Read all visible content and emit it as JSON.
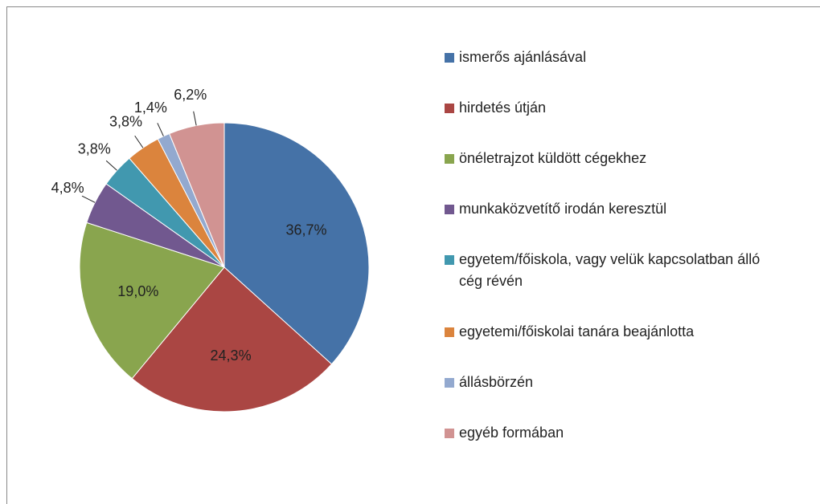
{
  "chart_data": {
    "type": "pie",
    "categories": [
      "ismerős ajánlásával",
      "hirdetés útján",
      "önéletrajzot küldött cégekhez",
      "munkaközvetítő irodán keresztül",
      "egyetem/főiskola, vagy velük kapcsolatban álló cég révén",
      "egyetemi/főiskolai tanára beajánlotta",
      "állásbörzén",
      "egyéb formában"
    ],
    "values": [
      36.7,
      24.3,
      19.0,
      4.8,
      3.8,
      3.8,
      1.4,
      6.2
    ],
    "value_labels": [
      "36,7%",
      "24,3%",
      "19,0%",
      "4,8%",
      "3,8%",
      "3,8%",
      "1,4%",
      "6,2%"
    ],
    "colors": [
      "#4572a7",
      "#aa4643",
      "#89a54e",
      "#71588f",
      "#4198af",
      "#db843d",
      "#93a9cf",
      "#d19392"
    ],
    "legend": "right"
  }
}
